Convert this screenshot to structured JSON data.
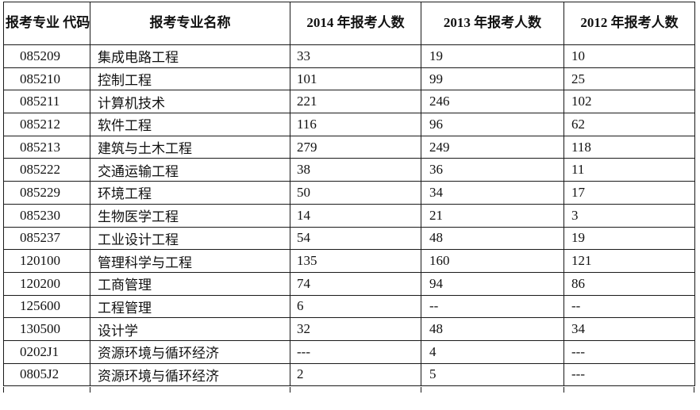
{
  "page": {
    "background_color": "#ffffff",
    "border_color": "#1a1a1a",
    "text_color": "#111111"
  },
  "table": {
    "headers": [
      "报考专业\n代码",
      "报考专业名称",
      "2014 年报考人数",
      "2013 年报考人数",
      "2012 年报考人数"
    ],
    "rows": [
      {
        "code": "085209",
        "name": "集成电路工程",
        "y2014": "33",
        "y2013": "19",
        "y2012": "10"
      },
      {
        "code": "085210",
        "name": "控制工程",
        "y2014": "101",
        "y2013": "99",
        "y2012": "25"
      },
      {
        "code": "085211",
        "name": "计算机技术",
        "y2014": "221",
        "y2013": "246",
        "y2012": "102"
      },
      {
        "code": "085212",
        "name": "软件工程",
        "y2014": "116",
        "y2013": "96",
        "y2012": "62"
      },
      {
        "code": "085213",
        "name": "建筑与土木工程",
        "y2014": "279",
        "y2013": "249",
        "y2012": "118"
      },
      {
        "code": "085222",
        "name": "交通运输工程",
        "y2014": "38",
        "y2013": "36",
        "y2012": "11"
      },
      {
        "code": "085229",
        "name": "环境工程",
        "y2014": "50",
        "y2013": "34",
        "y2012": "17"
      },
      {
        "code": "085230",
        "name": "生物医学工程",
        "y2014": "14",
        "y2013": "21",
        "y2012": "3"
      },
      {
        "code": "085237",
        "name": "工业设计工程",
        "y2014": "54",
        "y2013": "48",
        "y2012": "19"
      },
      {
        "code": "120100",
        "name": "管理科学与工程",
        "y2014": "135",
        "y2013": "160",
        "y2012": "121"
      },
      {
        "code": "120200",
        "name": "工商管理",
        "y2014": "74",
        "y2013": "94",
        "y2012": "86"
      },
      {
        "code": "125600",
        "name": "工程管理",
        "y2014": "6",
        "y2013": "--",
        "y2012": "--"
      },
      {
        "code": "130500",
        "name": "设计学",
        "y2014": "32",
        "y2013": "48",
        "y2012": "34"
      },
      {
        "code": "0202J1",
        "name": "资源环境与循环经济",
        "y2014": "---",
        "y2013": "4",
        "y2012": "---"
      },
      {
        "code": "0805J2",
        "name": "资源环境与循环经济",
        "y2014": "2",
        "y2013": "5",
        "y2012": "---"
      }
    ]
  }
}
